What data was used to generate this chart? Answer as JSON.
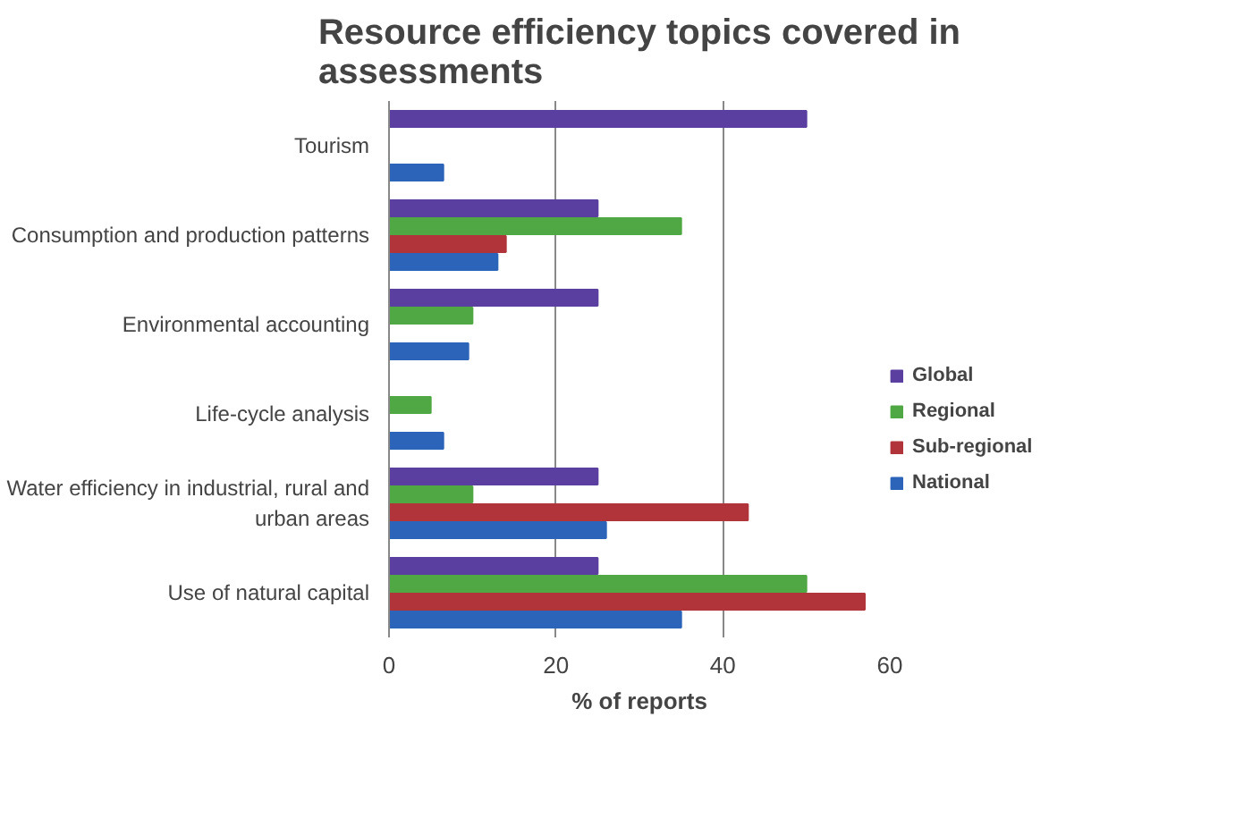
{
  "chart_data": {
    "type": "bar",
    "orientation": "horizontal",
    "title": "Resource efficiency topics covered in\nassessments",
    "xlabel": "% of reports",
    "categories": [
      "Tourism",
      "Consumption and production patterns",
      "Environmental accounting",
      "Life-cycle analysis",
      "Water efficiency in industrial, rural and\nurban areas",
      "Use of natural capital"
    ],
    "series": [
      {
        "name": "Global",
        "color": "#5b3fa0",
        "values": [
          50,
          25,
          25,
          null,
          25,
          25
        ]
      },
      {
        "name": "Regional",
        "color": "#4fa843",
        "values": [
          null,
          35,
          10,
          5,
          10,
          50
        ]
      },
      {
        "name": "Sub-regional",
        "color": "#b0343a",
        "values": [
          null,
          14,
          null,
          null,
          43,
          57
        ]
      },
      {
        "name": "National",
        "color": "#2b64b8",
        "values": [
          6.5,
          13,
          9.5,
          6.5,
          26,
          35
        ]
      }
    ],
    "xlim": [
      0,
      60
    ],
    "xticks": [
      0,
      20,
      40,
      60
    ],
    "grid": "x",
    "legend": "right"
  }
}
